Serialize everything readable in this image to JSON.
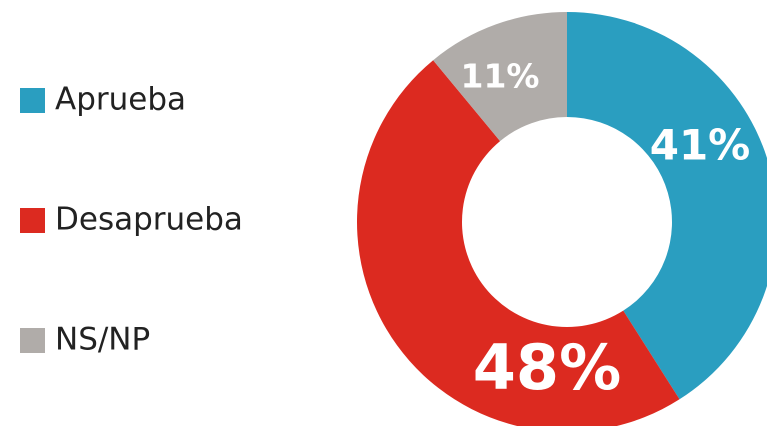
{
  "chart_data": {
    "type": "pie",
    "categories": [
      "Aprueba",
      "Desaprueba",
      "NS/NP"
    ],
    "values": [
      41,
      48,
      11
    ],
    "value_labels": [
      "41%",
      "48%",
      "11%"
    ],
    "colors": [
      "#2a9ec0",
      "#dc2a20",
      "#b0aca9"
    ],
    "legend": "left"
  }
}
